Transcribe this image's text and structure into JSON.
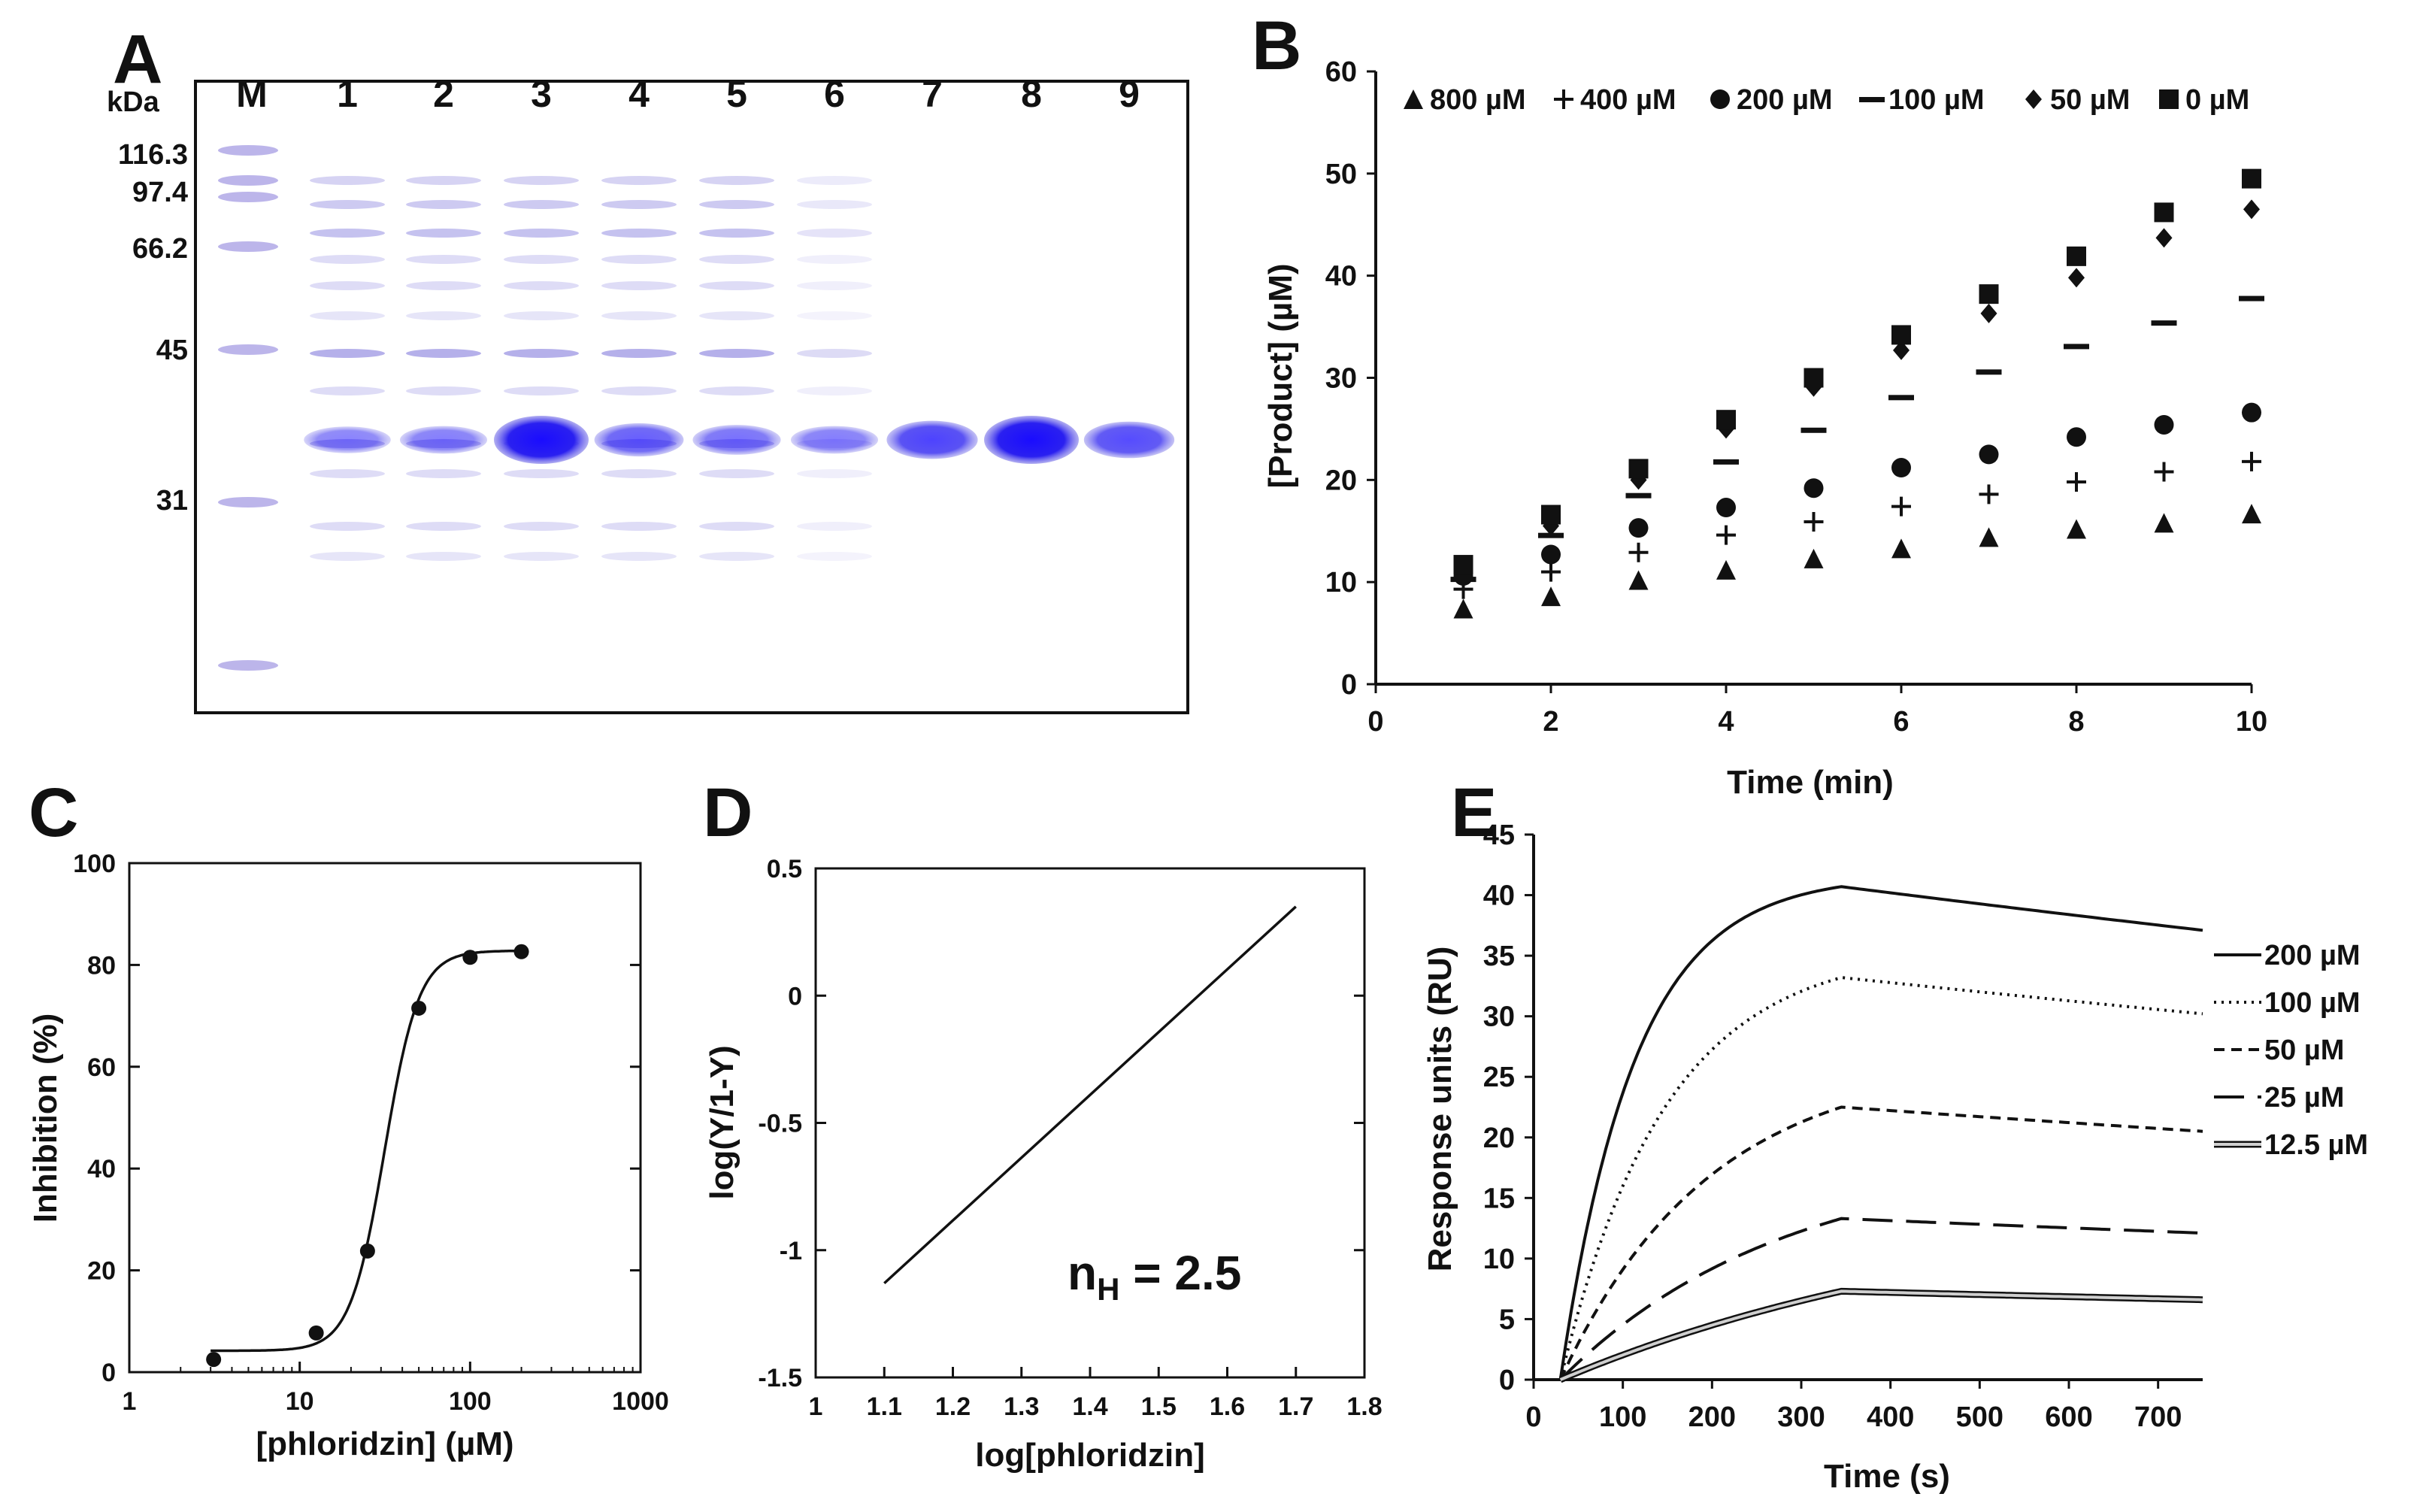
{
  "panels": {
    "a": "A",
    "b": "B",
    "c": "C",
    "d": "D",
    "e": "E"
  },
  "chart_data": [
    {
      "panel": "A",
      "type": "other",
      "description_kind": "SDS-PAGE gel",
      "unit_label": "kDa",
      "lanes": [
        "M",
        "1",
        "2",
        "3",
        "4",
        "5",
        "6",
        "7",
        "8",
        "9"
      ],
      "marker_kda": [
        "116.3",
        "97.4",
        "66.2",
        "45",
        "31"
      ],
      "target_band_intensity": [
        0.35,
        0.38,
        1.0,
        0.55,
        0.45,
        0.38,
        0.7,
        1.0,
        0.65
      ]
    },
    {
      "panel": "B",
      "type": "scatter",
      "xlabel": "Time (min)",
      "ylabel": "[Product] (µM)",
      "xlim": [
        0,
        10
      ],
      "ylim": [
        0,
        60
      ],
      "xticks": [
        "0",
        "2",
        "4",
        "6",
        "8",
        "10"
      ],
      "yticks": [
        "0",
        "10",
        "20",
        "30",
        "40",
        "50",
        "60"
      ],
      "x": [
        1,
        2,
        3,
        4,
        5,
        6,
        7,
        8,
        9,
        10
      ],
      "series": [
        {
          "name": "800 µM",
          "marker": "triangle",
          "values": [
            7.4,
            8.6,
            10.2,
            11.2,
            12.3,
            13.3,
            14.4,
            15.2,
            15.8,
            16.7
          ]
        },
        {
          "name": "400 µM",
          "marker": "plus",
          "values": [
            9.3,
            11.0,
            12.9,
            14.6,
            15.9,
            17.4,
            18.6,
            19.8,
            20.8,
            21.8
          ]
        },
        {
          "name": "200 µM",
          "marker": "circle",
          "values": [
            10.6,
            12.7,
            15.3,
            17.3,
            19.2,
            21.2,
            22.5,
            24.2,
            25.4,
            26.6
          ]
        },
        {
          "name": "100 µM",
          "marker": "dash",
          "values": [
            10.3,
            14.6,
            18.5,
            21.8,
            24.9,
            28.1,
            30.6,
            33.1,
            35.4,
            37.8
          ]
        },
        {
          "name": "50 µM",
          "marker": "diamond",
          "values": [
            10.8,
            15.5,
            20.0,
            25.0,
            29.1,
            32.7,
            36.3,
            39.8,
            43.7,
            46.5
          ]
        },
        {
          "name": "0 µM",
          "marker": "square",
          "values": [
            11.7,
            16.6,
            21.1,
            25.9,
            30.0,
            34.2,
            38.2,
            41.9,
            46.2,
            49.5
          ]
        }
      ]
    },
    {
      "panel": "C",
      "type": "scatter",
      "xlabel": "[phloridzin] (µM)",
      "ylabel": "Inhibition (%)",
      "xscale": "log",
      "xlim": [
        1,
        1000
      ],
      "ylim": [
        0,
        100
      ],
      "xticks": [
        "1",
        "10",
        "100",
        "1000"
      ],
      "yticks": [
        "0",
        "20",
        "40",
        "60",
        "80",
        "100"
      ],
      "points": {
        "x": [
          3.125,
          12.5,
          25,
          50,
          100,
          200
        ],
        "y": [
          2.5,
          7.7,
          23.8,
          71.5,
          81.5,
          82.6
        ]
      },
      "fit": {
        "bottom": 4.2,
        "top": 82.8,
        "ic50": 31.5,
        "hill": 4.3
      }
    },
    {
      "panel": "D",
      "type": "line",
      "xlabel": "log[phloridzin]",
      "ylabel": "log(Y/1-Y)",
      "xlim": [
        1,
        1.8
      ],
      "ylim": [
        -1.5,
        0.5
      ],
      "xticks": [
        "1",
        "1.1",
        "1.2",
        "1.3",
        "1.4",
        "1.5",
        "1.6",
        "1.7",
        "1.8"
      ],
      "yticks": [
        "-1.5",
        "-1",
        "-0.5",
        "0",
        "0.5"
      ],
      "x": [
        1.1,
        1.7
      ],
      "y": [
        -1.13,
        0.35
      ],
      "annotation_main": "n",
      "annotation_sub": "H",
      "annotation_rest": " = 2.5"
    },
    {
      "panel": "E",
      "type": "line",
      "xlabel": "Time (s)",
      "ylabel": "Response units (RU)",
      "xlim": [
        0,
        750
      ],
      "ylim": [
        0,
        45
      ],
      "xticks": [
        "0",
        "100",
        "200",
        "300",
        "400",
        "500",
        "600",
        "700"
      ],
      "yticks": [
        "0",
        "5",
        "10",
        "15",
        "20",
        "25",
        "30",
        "35",
        "40",
        "45"
      ],
      "injection_start_s": 30,
      "injection_end_s": 345,
      "end_s": 750,
      "series": [
        {
          "name": "200 µM",
          "style": "solid",
          "plateau": 40.7,
          "k_on": 0.012,
          "end_value": 37.1
        },
        {
          "name": "100 µM",
          "style": "dotted",
          "plateau": 33.2,
          "k_on": 0.0085,
          "end_value": 30.2
        },
        {
          "name": "50 µM",
          "style": "dashed",
          "plateau": 22.5,
          "k_on": 0.006,
          "end_value": 20.5
        },
        {
          "name": "25 µM",
          "style": "longdash",
          "plateau": 13.3,
          "k_on": 0.004,
          "end_value": 12.1
        },
        {
          "name": "12.5 µM",
          "style": "double",
          "plateau": 7.3,
          "k_on": 0.002,
          "end_value": 6.6
        }
      ]
    }
  ]
}
